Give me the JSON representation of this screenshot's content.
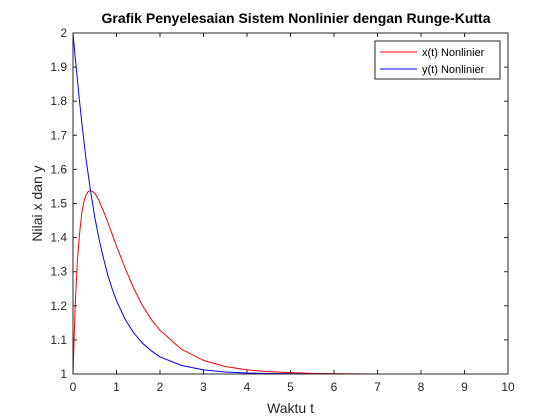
{
  "chart_data": {
    "type": "line",
    "title": "Grafik Penyelesaian Sistem Nonlinier dengan Runge-Kutta",
    "xlabel": "Waktu t",
    "ylabel": "Nilai x dan y",
    "xlim": [
      0,
      10
    ],
    "ylim": [
      1,
      2
    ],
    "xticks": [
      "0",
      "1",
      "2",
      "3",
      "4",
      "5",
      "6",
      "7",
      "8",
      "9",
      "10"
    ],
    "yticks": [
      "1",
      "1.1",
      "1.2",
      "1.3",
      "1.4",
      "1.5",
      "1.6",
      "1.7",
      "1.8",
      "1.9",
      "2"
    ],
    "grid": false,
    "box": true,
    "legend_position": "top-right",
    "series": [
      {
        "name": "x(t) Nonlinier",
        "color": "#ff0000",
        "x": [
          0,
          0.05,
          0.1,
          0.15,
          0.2,
          0.25,
          0.3,
          0.35,
          0.4,
          0.45,
          0.5,
          0.55,
          0.6,
          0.7,
          0.8,
          0.9,
          1.0,
          1.2,
          1.4,
          1.6,
          1.8,
          2.0,
          2.5,
          3.0,
          3.5,
          4.0,
          4.5,
          5.0,
          5.5,
          6.0,
          7.0,
          8.0,
          9.0,
          10.0
        ],
        "y": [
          1.0,
          1.2,
          1.33,
          1.41,
          1.47,
          1.505,
          1.525,
          1.535,
          1.537,
          1.535,
          1.53,
          1.52,
          1.508,
          1.478,
          1.445,
          1.41,
          1.375,
          1.31,
          1.25,
          1.2,
          1.16,
          1.128,
          1.072,
          1.04,
          1.022,
          1.012,
          1.007,
          1.004,
          1.002,
          1.001,
          1.0,
          1.0,
          1.0,
          1.0
        ]
      },
      {
        "name": "y(t) Nonlinier",
        "color": "#0000ff",
        "x": [
          0,
          0.05,
          0.1,
          0.15,
          0.2,
          0.3,
          0.4,
          0.5,
          0.6,
          0.7,
          0.8,
          0.9,
          1.0,
          1.2,
          1.4,
          1.6,
          1.8,
          2.0,
          2.5,
          3.0,
          3.5,
          4.0,
          4.5,
          5.0,
          5.5,
          6.0,
          7.0,
          8.0,
          9.0,
          10.0
        ],
        "y": [
          2.0,
          1.93,
          1.865,
          1.8,
          1.74,
          1.63,
          1.54,
          1.46,
          1.395,
          1.34,
          1.29,
          1.25,
          1.215,
          1.16,
          1.12,
          1.09,
          1.068,
          1.05,
          1.025,
          1.012,
          1.006,
          1.003,
          1.0015,
          1.001,
          1.0,
          1.0,
          1.0,
          1.0,
          1.0,
          1.0
        ]
      }
    ]
  }
}
